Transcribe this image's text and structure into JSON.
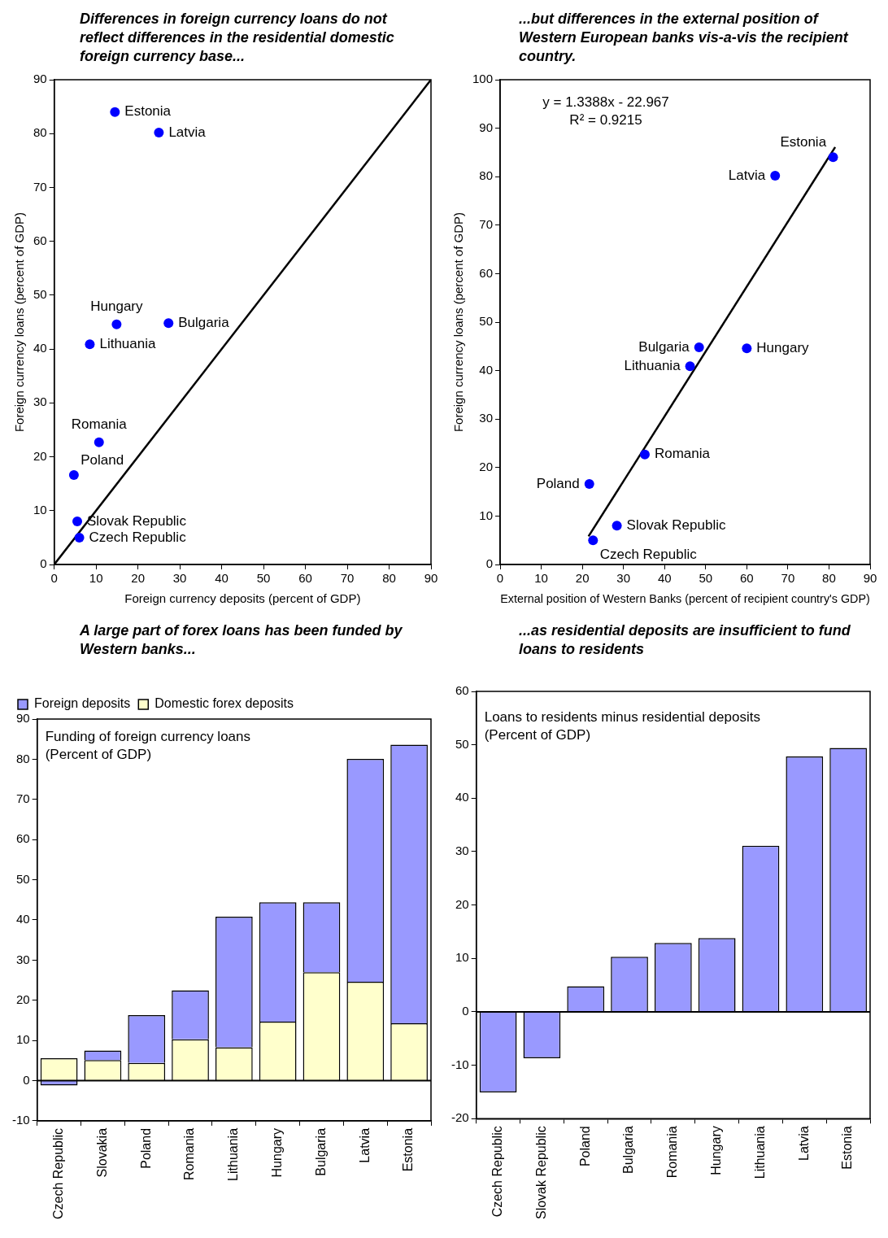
{
  "chart_data": [
    {
      "type": "scatter",
      "title": "Differences in foreign currency loans do not reflect differences in  the residential domestic foreign currency base...",
      "xlabel": "Foreign currency deposits (percent of GDP)",
      "ylabel": "Foreign currency loans (percent of GDP)",
      "xlim": [
        0,
        90
      ],
      "ylim": [
        0,
        90
      ],
      "xticks": [
        0,
        10,
        20,
        30,
        40,
        50,
        60,
        70,
        80,
        90
      ],
      "yticks": [
        0,
        10,
        20,
        30,
        40,
        50,
        60,
        70,
        80,
        90
      ],
      "marker": "circle",
      "grid": false,
      "legend": false,
      "series": [
        {
          "color": "#0000ff",
          "x": [
            14.5,
            25,
            14.9,
            27.3,
            8.5,
            10.7,
            4.7,
            5.5,
            6
          ],
          "values": [
            84,
            80.2,
            44.6,
            44.8,
            40.9,
            22.7,
            16.6,
            8,
            5
          ]
        },
        {
          "type": "line",
          "marker": "none",
          "color": "#000000",
          "x": [
            0,
            90
          ],
          "values": [
            0,
            90
          ]
        }
      ],
      "annotations": [
        {
          "text": "Estonia",
          "x": 14.5,
          "y": 84
        },
        {
          "text": "Latvia",
          "x": 25,
          "y": 80.2
        },
        {
          "text": "Hungary",
          "x": 14.9,
          "y": 44.6
        },
        {
          "text": "Bulgaria",
          "x": 27.3,
          "y": 44.8
        },
        {
          "text": "Lithuania",
          "x": 8.5,
          "y": 40.9
        },
        {
          "text": "Romania",
          "x": 10.7,
          "y": 22.7
        },
        {
          "text": "Poland",
          "x": 4.7,
          "y": 16.6
        },
        {
          "text": "Slovak Republic",
          "x": 5.5,
          "y": 8
        },
        {
          "text": "Czech Republic",
          "x": 6,
          "y": 5
        }
      ]
    },
    {
      "type": "scatter",
      "title": "...but differences in the external position of Western European banks vis-a-vis the recipient country.",
      "xlabel": "External position of Western Banks (percent of recipient country's GDP)",
      "ylabel": "Foreign currency loans (percent of GDP)",
      "xlim": [
        0,
        90
      ],
      "ylim": [
        0,
        100
      ],
      "xticks": [
        0,
        10,
        20,
        30,
        40,
        50,
        60,
        70,
        80,
        90
      ],
      "yticks": [
        0,
        10,
        20,
        30,
        40,
        50,
        60,
        70,
        80,
        90,
        100
      ],
      "marker": "circle",
      "grid": false,
      "legend": false,
      "series": [
        {
          "color": "#0000ff",
          "x": [
            81,
            66.9,
            60,
            48.4,
            46.2,
            35.2,
            21.7,
            28.4,
            22.6
          ],
          "values": [
            84,
            80.2,
            44.6,
            44.8,
            40.9,
            22.7,
            16.6,
            8,
            5
          ]
        },
        {
          "type": "line",
          "marker": "none",
          "color": "#000000",
          "x": [
            21.5,
            81.5
          ],
          "values": [
            5.8,
            86.1
          ]
        }
      ],
      "annotations": [
        "y = 1.3388x - 22.967",
        "R² = 0.9215",
        {
          "text": "Estonia",
          "x": 81,
          "y": 84
        },
        {
          "text": "Latvia",
          "x": 66.9,
          "y": 80.2
        },
        {
          "text": "Hungary",
          "x": 60,
          "y": 44.6
        },
        {
          "text": "Bulgaria",
          "x": 48.4,
          "y": 44.8
        },
        {
          "text": "Lithuania",
          "x": 46.2,
          "y": 40.9
        },
        {
          "text": "Romania",
          "x": 35.2,
          "y": 22.7
        },
        {
          "text": "Poland",
          "x": 21.7,
          "y": 16.6
        },
        {
          "text": "Slovak Republic",
          "x": 28.4,
          "y": 8
        },
        {
          "text": "Czech Republic",
          "x": 22.6,
          "y": 5
        }
      ]
    },
    {
      "type": "bar",
      "title": "A large part of forex loans has been funded by Western banks...",
      "stacked": true,
      "categories": [
        "Czech Republic",
        "Slovakia",
        "Poland",
        "Romania",
        "Lithuania",
        "Hungary",
        "Bulgaria",
        "Latvia",
        "Estonia"
      ],
      "ylim": [
        -10,
        90
      ],
      "yticks": [
        -10,
        0,
        10,
        20,
        30,
        40,
        50,
        60,
        70,
        80,
        90
      ],
      "grid": false,
      "legend": "top left",
      "ref_lines": [
        {
          "axis": "y",
          "value": 0,
          "color": "#000000"
        }
      ],
      "series": [
        {
          "name": "Domestic forex deposits",
          "color": "#ffffcc",
          "values": [
            5.6,
            5.1,
            4.4,
            10.3,
            8.3,
            14.7,
            27,
            24.6,
            14.3
          ]
        },
        {
          "name": "Foreign deposits",
          "color": "#9999ff",
          "values": [
            -1.2,
            2.4,
            11.9,
            12.2,
            32.5,
            29.7,
            17.4,
            55.5,
            69.3
          ]
        }
      ],
      "annotations": [
        "Funding of foreign currency loans",
        "(Percent of GDP)"
      ]
    },
    {
      "type": "bar",
      "title": "...as residential deposits are insufficient to fund  loans to residents",
      "categories": [
        "Czech Republic",
        "Slovak Republic",
        "Poland",
        "Bulgaria",
        "Romania",
        "Hungary",
        "Lithuania",
        "Latvia",
        "Estonia"
      ],
      "values": [
        -15.1,
        -8.7,
        4.8,
        10.3,
        12.9,
        13.8,
        31.1,
        47.8,
        49.4
      ],
      "color": "#9999ff",
      "ylim": [
        -20,
        60
      ],
      "yticks": [
        -20,
        -10,
        0,
        10,
        20,
        30,
        40,
        50,
        60
      ],
      "grid": false,
      "legend": false,
      "ref_lines": [
        {
          "axis": "y",
          "value": 0,
          "color": "#000000"
        }
      ],
      "annotations": [
        "Loans to residents minus residential deposits",
        "(Percent of GDP)"
      ]
    }
  ]
}
